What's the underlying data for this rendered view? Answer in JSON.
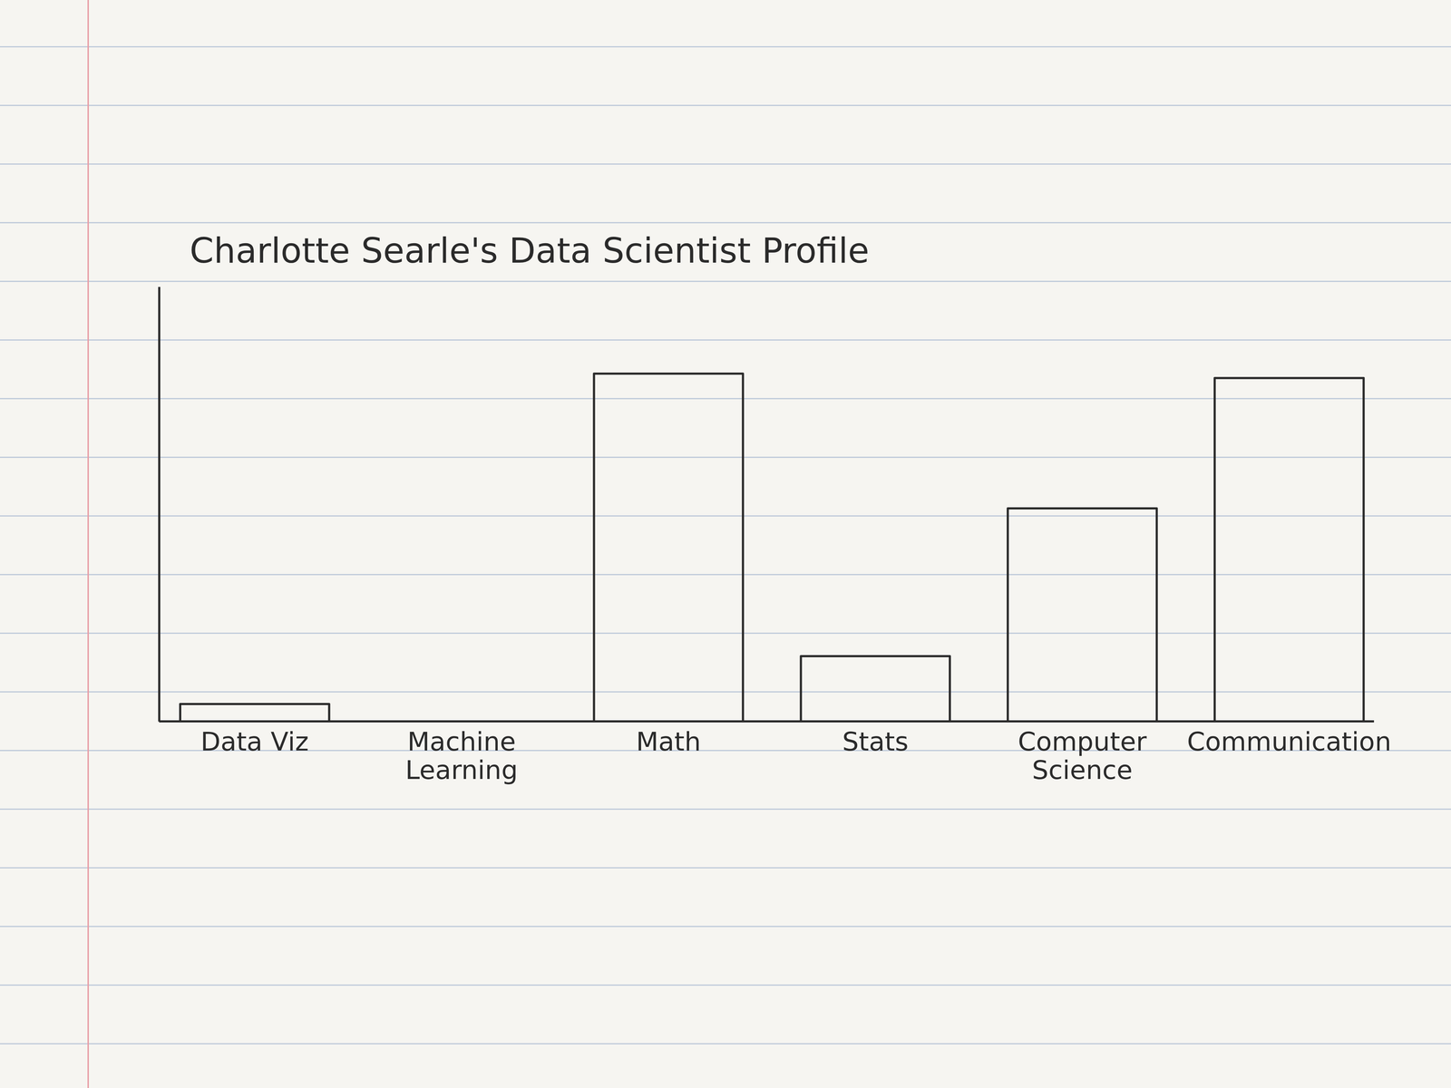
{
  "chart_data": {
    "type": "bar",
    "title": "Charlotte Searle's Data Scientist Profile",
    "categories": [
      "Data Viz",
      "Machine Learning",
      "Math",
      "Stats",
      "Computer Science",
      "Communication"
    ],
    "values": [
      4,
      0,
      80,
      15,
      49,
      79
    ],
    "color": "#2b2b2b",
    "ylim": [
      0,
      100
    ],
    "tick_labels": "x"
  }
}
